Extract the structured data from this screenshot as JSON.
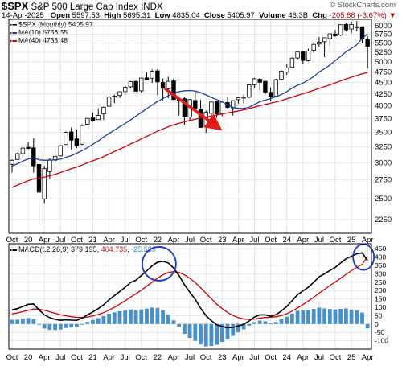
{
  "header": {
    "ticker": "$SPX",
    "name": "S&P 500 Large Cap Index",
    "exchange": "INDX",
    "brand": "© StockCharts.com"
  },
  "quote": {
    "date": "14-Apr-2025",
    "open_label": "Open",
    "open": "5597.53",
    "high_label": "High",
    "high": "5695.31",
    "low_label": "Low",
    "low": "4835.04",
    "close_label": "Close",
    "close": "5405.97",
    "volume_label": "Volume",
    "volume": "46.3B",
    "chg_label": "Chg",
    "chg": "-205.88 (-3.67%)"
  },
  "legend": {
    "spx": "$SPX (Monthly) 5405.97",
    "ma10": "MA(10) 5756.55",
    "ma40": "MA(40) 4733.48"
  },
  "macd_legend": {
    "label": "MACD(12,26,9)",
    "macd": "379.195,",
    "signal": "404.735,",
    "hist": "-25.539"
  },
  "colors": {
    "up": "#ffffff",
    "down": "#000000",
    "ma10": "#1b3f99",
    "ma40": "#d40000",
    "macd": "#000000",
    "signal": "#d40000",
    "histogram": "#4a90c8",
    "arrow": "#e51b1b",
    "circle": "#1a35c8"
  },
  "x_axis": {
    "labels": [
      "Oct",
      "20",
      "Apr",
      "Jul",
      "Oct",
      "21",
      "Apr",
      "Jul",
      "Oct",
      "22",
      "Apr",
      "Jul",
      "Oct",
      "23",
      "Apr",
      "Jul",
      "Oct",
      "24",
      "Apr",
      "Jul",
      "Oct",
      "25",
      "Apr"
    ],
    "label_months": [
      0,
      3,
      6,
      9,
      12,
      15,
      18,
      21,
      24,
      27,
      30,
      33,
      36,
      39,
      42,
      45,
      48,
      51,
      54,
      57,
      60,
      63,
      66
    ]
  },
  "chart_data": [
    {
      "type": "candlestick",
      "title": "$SPX (Monthly)",
      "y_scale": "log",
      "ylim": [
        2100,
        6200
      ],
      "y_ticks": [
        2250,
        2500,
        2750,
        3000,
        3250,
        3500,
        3750,
        4000,
        4250,
        4500,
        4750,
        5000,
        5250,
        5500,
        5750,
        6000
      ],
      "x": [
        "2019-10",
        "2019-11",
        "2019-12",
        "2020-01",
        "2020-02",
        "2020-03",
        "2020-04",
        "2020-05",
        "2020-06",
        "2020-07",
        "2020-08",
        "2020-09",
        "2020-10",
        "2020-11",
        "2020-12",
        "2021-01",
        "2021-02",
        "2021-03",
        "2021-04",
        "2021-05",
        "2021-06",
        "2021-07",
        "2021-08",
        "2021-09",
        "2021-10",
        "2021-11",
        "2021-12",
        "2022-01",
        "2022-02",
        "2022-03",
        "2022-04",
        "2022-05",
        "2022-06",
        "2022-07",
        "2022-08",
        "2022-09",
        "2022-10",
        "2022-11",
        "2022-12",
        "2023-01",
        "2023-02",
        "2023-03",
        "2023-04",
        "2023-05",
        "2023-06",
        "2023-07",
        "2023-08",
        "2023-09",
        "2023-10",
        "2023-11",
        "2023-12",
        "2024-01",
        "2024-02",
        "2024-03",
        "2024-04",
        "2024-05",
        "2024-06",
        "2024-07",
        "2024-08",
        "2024-09",
        "2024-10",
        "2024-11",
        "2024-12",
        "2025-01",
        "2025-02",
        "2025-03",
        "2025-04"
      ],
      "ohlc": [
        [
          2977,
          3050,
          2856,
          3038
        ],
        [
          3050,
          3154,
          3050,
          3141
        ],
        [
          3143,
          3248,
          3070,
          3231
        ],
        [
          3244,
          3338,
          3214,
          3226
        ],
        [
          3235,
          3393,
          2855,
          2954
        ],
        [
          2975,
          3137,
          2192,
          2585
        ],
        [
          2499,
          2954,
          2447,
          2912
        ],
        [
          2869,
          3068,
          2767,
          3044
        ],
        [
          3039,
          3233,
          2999,
          3100
        ],
        [
          3106,
          3280,
          3101,
          3271
        ],
        [
          3289,
          3514,
          3284,
          3500
        ],
        [
          3507,
          3588,
          3209,
          3363
        ],
        [
          3386,
          3550,
          3233,
          3270
        ],
        [
          3296,
          3646,
          3280,
          3622
        ],
        [
          3645,
          3760,
          3633,
          3756
        ],
        [
          3764,
          3870,
          3694,
          3714
        ],
        [
          3732,
          3950,
          3725,
          3811
        ],
        [
          3842,
          3984,
          3723,
          3973
        ],
        [
          3992,
          4218,
          3992,
          4181
        ],
        [
          4191,
          4238,
          4056,
          4204
        ],
        [
          4216,
          4302,
          4164,
          4298
        ],
        [
          4300,
          4429,
          4233,
          4395
        ],
        [
          4406,
          4537,
          4368,
          4523
        ],
        [
          4528,
          4546,
          4306,
          4308
        ],
        [
          4317,
          4608,
          4278,
          4605
        ],
        [
          4610,
          4743,
          4560,
          4567
        ],
        [
          4602,
          4808,
          4495,
          4766
        ],
        [
          4778,
          4818,
          4223,
          4516
        ],
        [
          4505,
          4596,
          4115,
          4374
        ],
        [
          4363,
          4637,
          4157,
          4530
        ],
        [
          4540,
          4594,
          4118,
          4132
        ],
        [
          4130,
          4204,
          3811,
          4132
        ],
        [
          4150,
          4178,
          3637,
          3785
        ],
        [
          3781,
          4141,
          3722,
          4130
        ],
        [
          4113,
          4325,
          3955,
          3955
        ],
        [
          3937,
          4120,
          3585,
          3586
        ],
        [
          3610,
          3905,
          3492,
          3872
        ],
        [
          3853,
          4080,
          3699,
          4080
        ],
        [
          4087,
          4101,
          3764,
          3840
        ],
        [
          3853,
          4095,
          3795,
          4077
        ],
        [
          4070,
          4195,
          3943,
          3970
        ],
        [
          3963,
          4110,
          3809,
          4109
        ],
        [
          4130,
          4170,
          4049,
          4169
        ],
        [
          4166,
          4231,
          4048,
          4180
        ],
        [
          4181,
          4458,
          4166,
          4450
        ],
        [
          4450,
          4608,
          4385,
          4589
        ],
        [
          4579,
          4607,
          4335,
          4508
        ],
        [
          4530,
          4541,
          4238,
          4288
        ],
        [
          4284,
          4393,
          4104,
          4194
        ],
        [
          4202,
          4588,
          4202,
          4568
        ],
        [
          4574,
          4793,
          4547,
          4770
        ],
        [
          4745,
          4932,
          4683,
          4846
        ],
        [
          4862,
          5112,
          4853,
          5096
        ],
        [
          5098,
          5265,
          5057,
          5254
        ],
        [
          5257,
          5264,
          4954,
          5036
        ],
        [
          5029,
          5342,
          5011,
          5277
        ],
        [
          5298,
          5524,
          5234,
          5460
        ],
        [
          5471,
          5670,
          5391,
          5522
        ],
        [
          5537,
          5652,
          5120,
          5648
        ],
        [
          5623,
          5768,
          5403,
          5762
        ],
        [
          5757,
          5878,
          5675,
          5705
        ],
        [
          5723,
          6045,
          5696,
          6032
        ],
        [
          6040,
          6100,
          5833,
          5882
        ],
        [
          5903,
          6129,
          5773,
          6041
        ],
        [
          5970,
          6147,
          5837,
          5955
        ],
        [
          5969,
          5987,
          5488,
          5612
        ],
        [
          5597,
          5695,
          4835,
          5406
        ]
      ],
      "ma10": [
        2950,
        2985,
        3025,
        3060,
        3075,
        3045,
        3038,
        3040,
        3045,
        3055,
        3085,
        3110,
        3150,
        3190,
        3240,
        3295,
        3350,
        3420,
        3480,
        3540,
        3600,
        3660,
        3725,
        3800,
        3870,
        3945,
        4020,
        4090,
        4150,
        4210,
        4265,
        4300,
        4320,
        4325,
        4315,
        4280,
        4230,
        4175,
        4130,
        4085,
        4020,
        3970,
        3950,
        3952,
        3970,
        4030,
        4085,
        4120,
        4150,
        4190,
        4240,
        4300,
        4380,
        4440,
        4490,
        4560,
        4640,
        4750,
        4830,
        4920,
        5030,
        5140,
        5260,
        5350,
        5450,
        5640,
        5757
      ],
      "ma40": [
        2650,
        2680,
        2710,
        2740,
        2765,
        2775,
        2790,
        2810,
        2830,
        2855,
        2885,
        2910,
        2935,
        2965,
        3000,
        3030,
        3060,
        3095,
        3135,
        3175,
        3215,
        3255,
        3300,
        3340,
        3385,
        3430,
        3475,
        3520,
        3560,
        3600,
        3635,
        3665,
        3690,
        3715,
        3740,
        3760,
        3780,
        3800,
        3820,
        3840,
        3860,
        3880,
        3900,
        3920,
        3945,
        3975,
        4005,
        4030,
        4055,
        4080,
        4110,
        4145,
        4180,
        4220,
        4255,
        4290,
        4330,
        4370,
        4410,
        4450,
        4495,
        4540,
        4585,
        4625,
        4665,
        4705,
        4733
      ]
    },
    {
      "type": "line",
      "title": "MACD(12,26,9)",
      "ylim": [
        -150,
        480
      ],
      "y_ticks": [
        -100,
        -50,
        0,
        50,
        100,
        150,
        200,
        250,
        300,
        350,
        400,
        450
      ],
      "series": [
        {
          "name": "MACD",
          "values": [
            85,
            92,
            105,
            118,
            120,
            85,
            55,
            38,
            28,
            22,
            25,
            23,
            22,
            35,
            55,
            72,
            92,
            115,
            145,
            170,
            195,
            220,
            248,
            262,
            290,
            318,
            348,
            370,
            375,
            365,
            335,
            290,
            235,
            190,
            148,
            95,
            50,
            20,
            -5,
            -15,
            -22,
            -20,
            -12,
            -2,
            18,
            42,
            55,
            55,
            46,
            56,
            78,
            105,
            140,
            175,
            198,
            220,
            250,
            282,
            300,
            320,
            338,
            365,
            390,
            405,
            420,
            425,
            379
          ]
        },
        {
          "name": "Signal",
          "values": [
            60,
            66,
            74,
            82,
            90,
            89,
            82,
            73,
            64,
            55,
            49,
            44,
            40,
            39,
            42,
            48,
            57,
            68,
            83,
            100,
            119,
            139,
            161,
            181,
            203,
            226,
            250,
            274,
            294,
            308,
            313,
            308,
            294,
            273,
            248,
            217,
            184,
            151,
            119,
            92,
            69,
            51,
            38,
            30,
            28,
            30,
            35,
            39,
            41,
            44,
            50,
            61,
            77,
            96,
            116,
            137,
            160,
            184,
            207,
            230,
            251,
            274,
            297,
            319,
            339,
            356,
            405
          ]
        },
        {
          "name": "Histogram",
          "values": [
            25,
            26,
            31,
            36,
            30,
            -4,
            -27,
            -35,
            -36,
            -33,
            -24,
            -21,
            -18,
            -4,
            13,
            24,
            35,
            47,
            62,
            70,
            76,
            81,
            87,
            81,
            87,
            92,
            98,
            96,
            81,
            57,
            22,
            -18,
            -59,
            -83,
            -100,
            -122,
            -134,
            -131,
            -124,
            -107,
            -91,
            -71,
            -50,
            -32,
            -10,
            12,
            20,
            16,
            5,
            12,
            28,
            44,
            63,
            79,
            82,
            83,
            90,
            98,
            93,
            90,
            87,
            91,
            93,
            86,
            81,
            69,
            -26
          ]
        }
      ]
    }
  ]
}
